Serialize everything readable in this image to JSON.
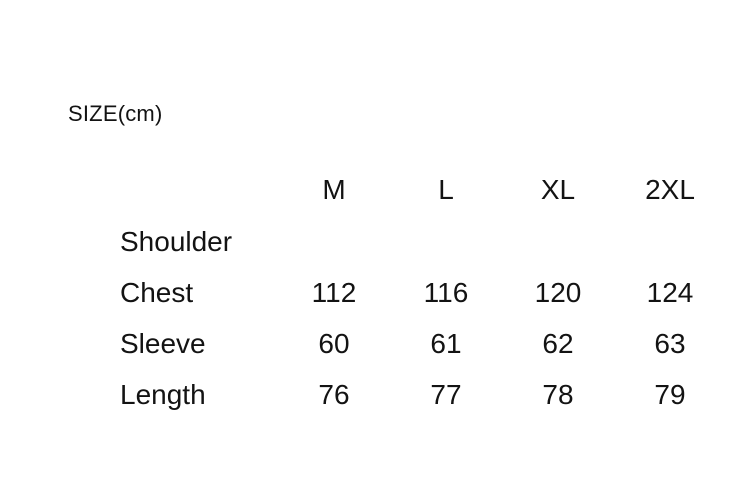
{
  "page": {
    "background_color": "#ffffff",
    "text_color": "#131313"
  },
  "title": "SIZE(cm)",
  "size_table": {
    "columns": [
      "M",
      "L",
      "XL",
      "2XL"
    ],
    "rows": [
      {
        "label": "Shoulder",
        "values": [
          "",
          "",
          "",
          ""
        ]
      },
      {
        "label": "Chest",
        "values": [
          "112",
          "116",
          "120",
          "124"
        ]
      },
      {
        "label": "Sleeve",
        "values": [
          "60",
          "61",
          "62",
          "63"
        ]
      },
      {
        "label": "Length",
        "values": [
          "76",
          "77",
          "78",
          "79"
        ]
      }
    ]
  }
}
